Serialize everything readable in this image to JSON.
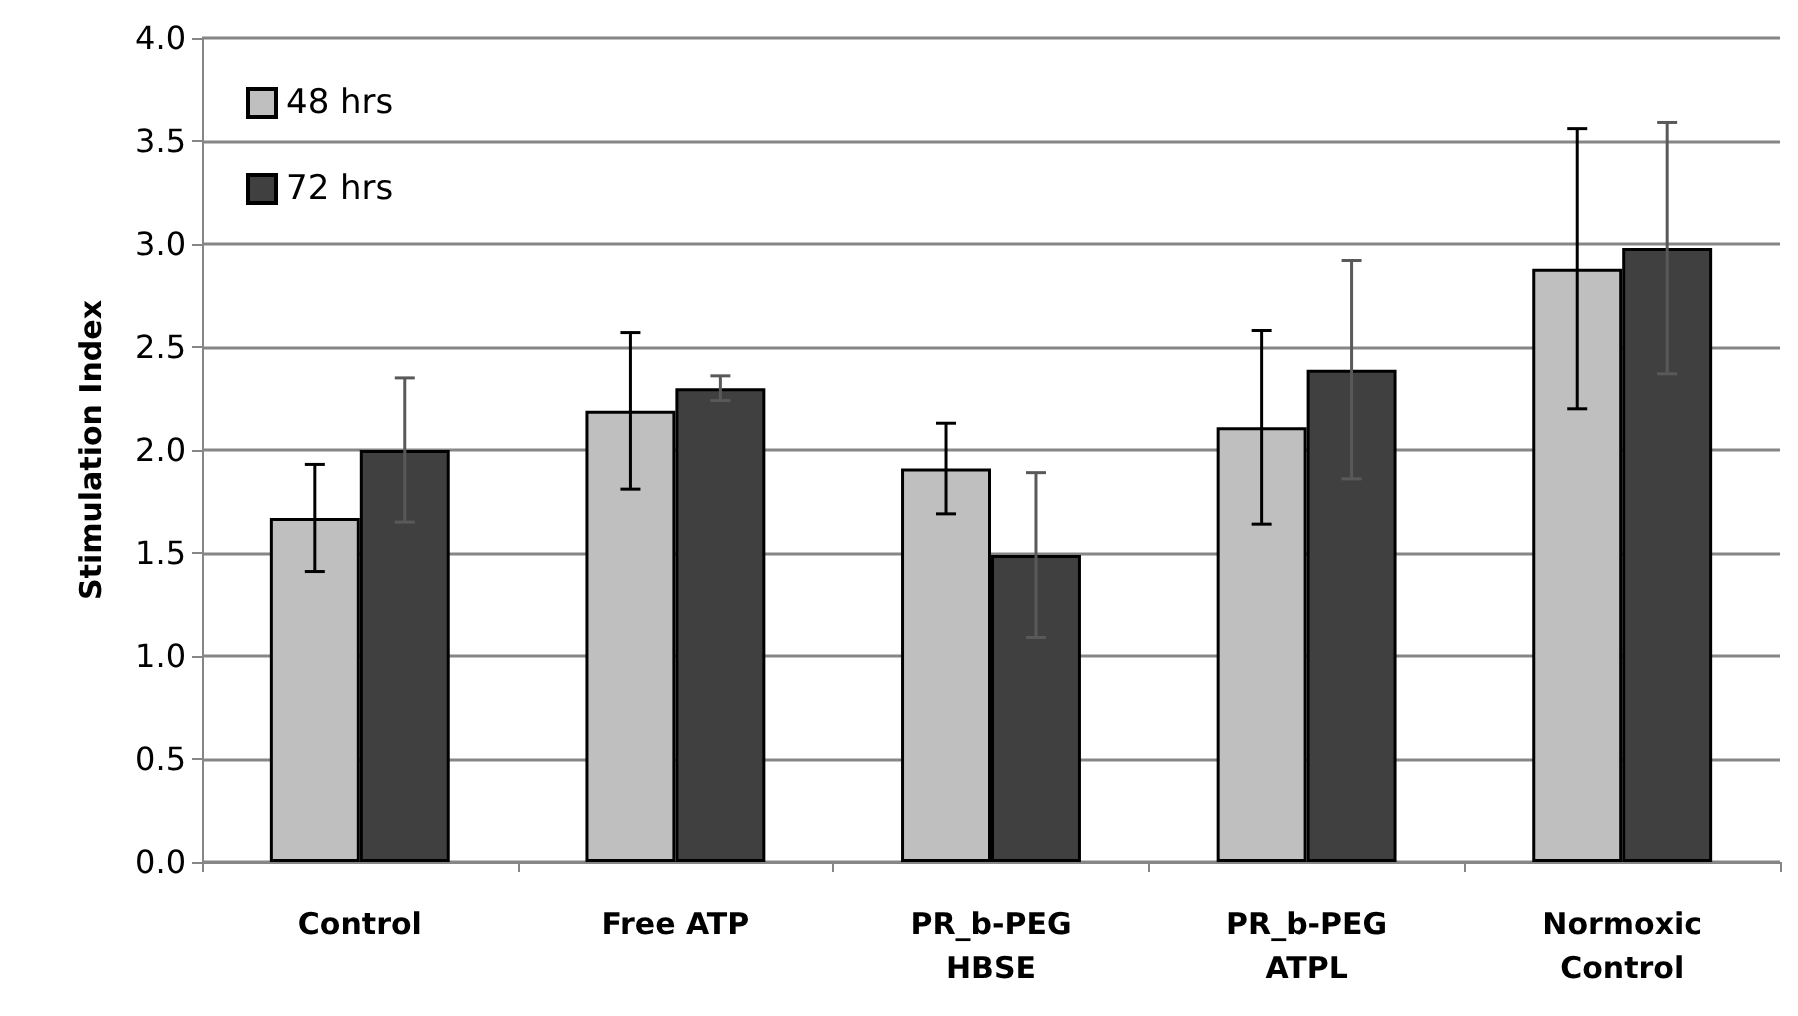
{
  "chart_data": {
    "type": "bar",
    "ylabel": "Stimulation Index",
    "categories": [
      "Control",
      "Free ATP",
      "PR_b-PEG\nHBSE",
      "PR_b-PEG\nATPL",
      "Normoxic\nControl"
    ],
    "series": [
      {
        "name": "48 hrs",
        "color": "#bfbfbf",
        "values": [
          1.67,
          2.19,
          1.91,
          2.11,
          2.88
        ],
        "errors": [
          0.26,
          0.38,
          0.22,
          0.47,
          0.68
        ]
      },
      {
        "name": "72 hrs",
        "color": "#404040",
        "values": [
          2.0,
          2.3,
          1.49,
          2.39,
          2.98
        ],
        "errors": [
          0.35,
          0.06,
          0.4,
          0.53,
          0.61
        ]
      }
    ],
    "ylim": [
      0,
      4
    ],
    "yticks": [
      {
        "value": 0,
        "label": "0.0"
      },
      {
        "value": 0.5,
        "label": "0.5"
      },
      {
        "value": 1,
        "label": "1.0"
      },
      {
        "value": 1.5,
        "label": "1.5"
      },
      {
        "value": 2,
        "label": "2.0"
      },
      {
        "value": 2.5,
        "label": "2.5"
      },
      {
        "value": 3,
        "label": "3.0"
      },
      {
        "value": 3.5,
        "label": "3.5"
      },
      {
        "value": 4,
        "label": "4.0"
      }
    ],
    "grid": "y",
    "legend": "top left"
  }
}
